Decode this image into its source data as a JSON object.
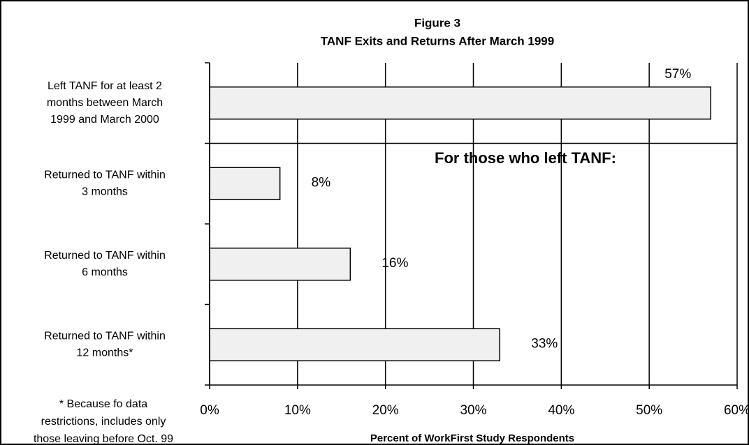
{
  "chart_data": {
    "type": "barh",
    "title": "Figure 3",
    "subtitle": "TANF Exits and Returns After March 1999",
    "categories": [
      [
        "Left TANF for at least 2",
        "months between March",
        "1999 and March 2000"
      ],
      [
        "Returned to TANF within",
        "3 months"
      ],
      [
        "Returned to TANF within",
        "6 months"
      ],
      [
        "Returned to TANF within",
        "12 months*"
      ]
    ],
    "values": [
      57,
      8,
      16,
      33
    ],
    "value_labels": [
      "57%",
      "8%",
      "16%",
      "33%"
    ],
    "color": "#f0f0f0",
    "xlim": [
      0,
      60
    ],
    "xticks": [
      {
        "value": 0,
        "label": "0%"
      },
      {
        "value": 10,
        "label": "10%"
      },
      {
        "value": 20,
        "label": "20%"
      },
      {
        "value": 30,
        "label": "30%"
      },
      {
        "value": 40,
        "label": "40%"
      },
      {
        "value": 50,
        "label": "50%"
      },
      {
        "value": 60,
        "label": "60%"
      }
    ],
    "grid": true,
    "xlabel": "Percent of WorkFirst Study Respondents",
    "annotation": "For those who left TANF:",
    "footnote": [
      "* Because fo data",
      "restrictions, includes only",
      "those leaving before Oct. 99"
    ]
  }
}
